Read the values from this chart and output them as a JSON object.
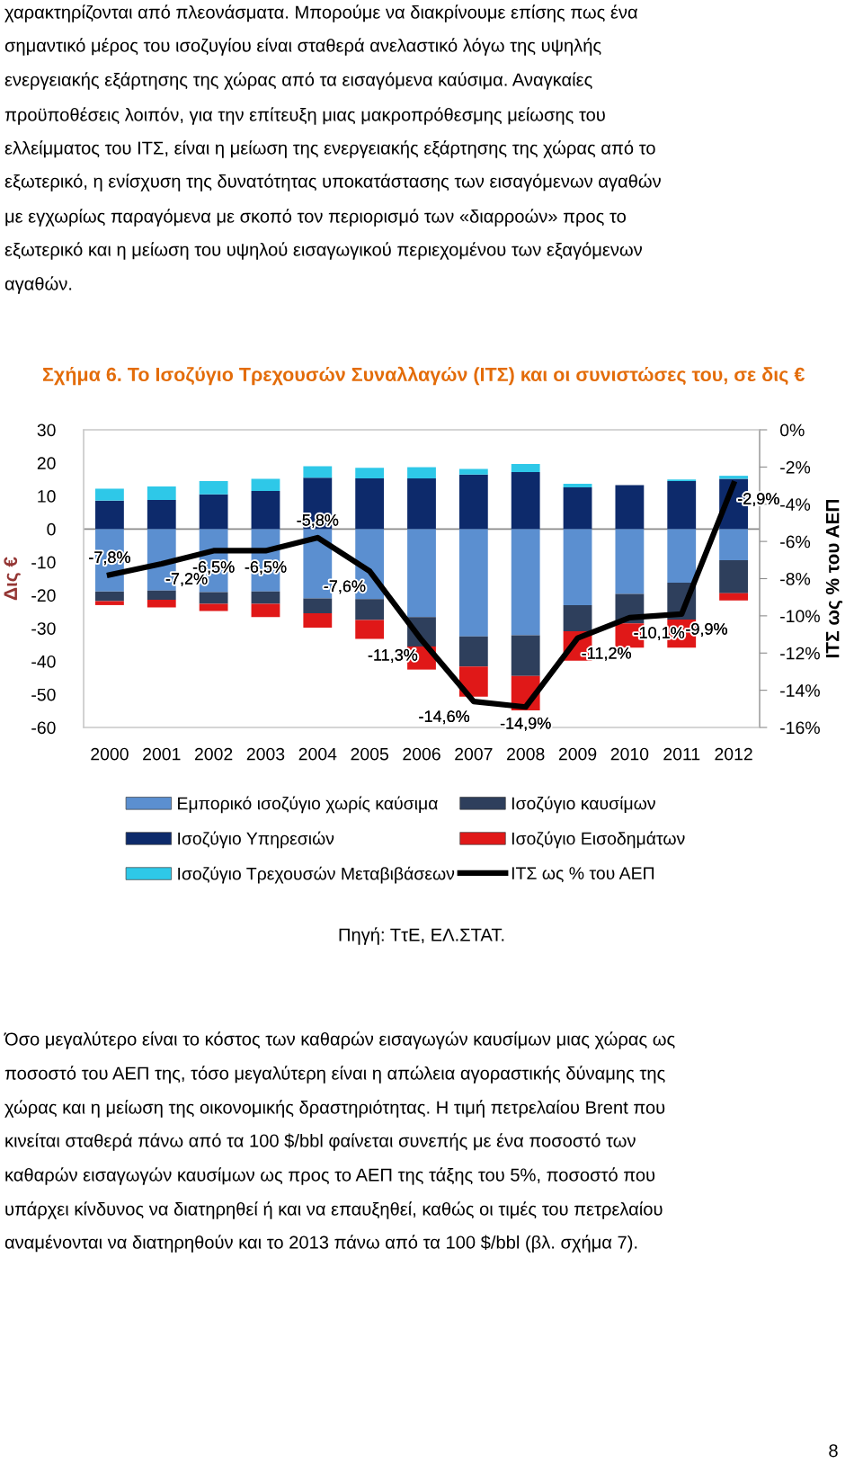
{
  "chart_data": {
    "type": "bar",
    "stacked": true,
    "title": "Σχήμα 6. Το Ισοζύγιο Τρεχουσών Συναλλαγών (ΙΤΣ) και οι συνιστώσες του, σε δις €",
    "ylabel": "Δις €",
    "y2label": "ΙΤΣ ως % του ΑΕΠ",
    "categories": [
      "2000",
      "2001",
      "2002",
      "2003",
      "2004",
      "2005",
      "2006",
      "2007",
      "2008",
      "2009",
      "2010",
      "2011",
      "2012"
    ],
    "series": [
      {
        "name": "Εμπορικό ισοζύγιο χωρίς καύσιμα",
        "color": "#5b8fd0",
        "values": [
          -18.9,
          -18.6,
          -19.1,
          -18.9,
          -21.0,
          -21.2,
          -26.6,
          -32.5,
          -32.1,
          -23.0,
          -19.6,
          -16.2,
          -9.4
        ]
      },
      {
        "name": "Ισοζύγιο καυσίμων",
        "color": "#2e3f5c",
        "values": [
          -2.9,
          -2.8,
          -3.5,
          -3.7,
          -4.5,
          -6.3,
          -8.9,
          -9.1,
          -12.3,
          -7.9,
          -8.9,
          -11.2,
          -10.0
        ]
      },
      {
        "name": "Ισοζύγιο Υπηρεσιών",
        "color": "#0d2a6b",
        "values": [
          8.6,
          8.8,
          10.5,
          11.5,
          15.5,
          15.3,
          15.3,
          16.5,
          17.2,
          12.6,
          13.3,
          14.5,
          15.2
        ]
      },
      {
        "name": "Ισοζύγιο Εισοδημάτων",
        "color": "#e01818",
        "values": [
          -1.2,
          -2.3,
          -2.2,
          -4.0,
          -4.3,
          -5.7,
          -7.0,
          -9.1,
          -10.4,
          -8.9,
          -7.4,
          -8.5,
          -2.2
        ]
      },
      {
        "name": "Ισοζύγιο Τρεχουσών Μεταβιβάσεων",
        "color": "#2ec8e8",
        "values": [
          3.6,
          4.1,
          4.0,
          3.7,
          3.5,
          3.2,
          3.4,
          1.7,
          2.5,
          1.1,
          null,
          0.5,
          0.9
        ]
      },
      {
        "name": "ΙΤΣ ως % του ΑΕΠ",
        "type": "line",
        "axis": "y2",
        "color": "#000000",
        "marker": "none",
        "line_style": "solid",
        "values": [
          -7.8,
          -7.2,
          -6.5,
          -6.5,
          -5.8,
          -7.6,
          -11.3,
          -14.6,
          -14.9,
          -11.2,
          -10.1,
          -9.9,
          -2.9
        ],
        "value_labels": [
          "-7,8%",
          "-7,2%",
          "-6,5%",
          "-6,5%",
          "-5,8%",
          "-7,6%",
          "-11,3%",
          "-14,6%",
          "-14,9%",
          "-11,2%",
          "-10,1%",
          "-9,9%",
          "-2,9%"
        ]
      }
    ],
    "ylim": [
      -60,
      30
    ],
    "yticks": [
      -60,
      -50,
      -40,
      -30,
      -20,
      -10,
      0,
      10,
      20,
      30
    ],
    "y2lim": [
      -16,
      0
    ],
    "y2ticks": [
      {
        "value": -16,
        "label": "-16%"
      },
      {
        "value": -14,
        "label": "-14%"
      },
      {
        "value": -12,
        "label": "-12%"
      },
      {
        "value": -10,
        "label": "-10%"
      },
      {
        "value": -8,
        "label": "-8%"
      },
      {
        "value": -6,
        "label": "-6%"
      },
      {
        "value": -4,
        "label": "-4%"
      },
      {
        "value": -2,
        "label": "-2%"
      },
      {
        "value": 0,
        "label": "0%"
      }
    ],
    "ref_lines": [
      {
        "axis": "y",
        "value": 0,
        "color": "#8c8c8c"
      }
    ],
    "legend": "bottom",
    "grid": false,
    "annotations": [
      "χαρακτηρίζονται από πλεονάσματα. Μπορούμε να διακρίνουμε επίσης πως ένα",
      "σημαντικό μέρος του ισοζυγίου είναι σταθερά ανελαστικό λόγω της υψηλής",
      "ενεργειακής εξάρτησης της χώρας από τα εισαγόμενα καύσιμα. Αναγκαίες",
      "προϋποθέσεις λοιπόν, για την επίτευξη μιας μακροπρόθεσμης μείωσης του",
      "ελλείμματος του ΙΤΣ, είναι η μείωση της ενεργειακής εξάρτησης της χώρας από το",
      "εξωτερικό, η ενίσχυση της δυνατότητας υποκατάστασης των εισαγόμενων αγαθών",
      "με εγχωρίως παραγόμενα με σκοπό τον περιορισμό των «διαρροών» προς το",
      "εξωτερικό και η μείωση του υψηλού εισαγωγικού περιεχομένου των εξαγόμενων",
      "αγαθών.",
      "Πηγή: ΤτΕ, ΕΛ.ΣΤΑΤ.",
      "Όσο μεγαλύτερο είναι το κόστος των καθαρών εισαγωγών καυσίμων μιας χώρας ως",
      "ποσοστό του ΑΕΠ της, τόσο μεγαλύτερη είναι η απώλεια αγοραστικής δύναμης της",
      "χώρας και η μείωση της οικονομικής δραστηριότητας. Η τιμή πετρελαίου Brent που",
      "κινείται σταθερά πάνω από τα 100 $/bbl φαίνεται συνεπής με ένα ποσοστό των",
      "καθαρών εισαγωγών καυσίμων ως προς το ΑΕΠ της τάξης του 5%, ποσοστό που",
      "υπάρχει κίνδυνος να διατηρηθεί ή και να επαυξηθεί, καθώς οι τιμές του πετρελαίου",
      "αναμένονται να διατηρηθούν και το 2013 πάνω από τα 100 $/bbl (βλ. σχήμα 7).",
      "8"
    ]
  }
}
